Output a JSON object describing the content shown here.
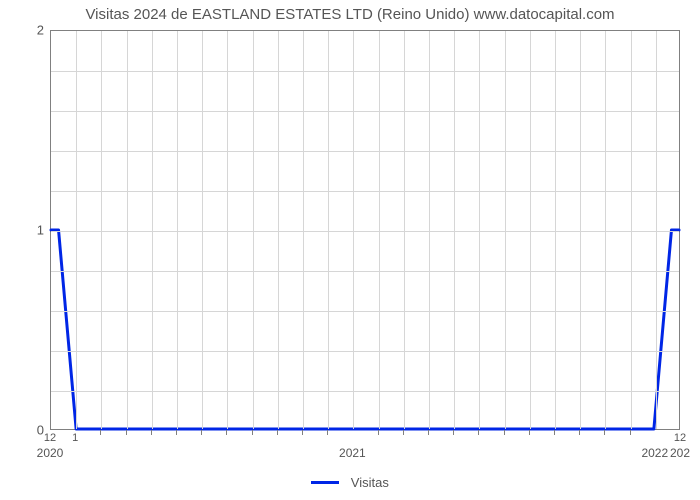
{
  "chart": {
    "type": "line",
    "title": "Visitas 2024 de EASTLAND ESTATES LTD (Reino Unido) www.datocapital.com",
    "title_fontsize": 15,
    "title_color": "#555555",
    "background_color": "#ffffff",
    "plot_border_color": "#808080",
    "grid_color": "#d6d6d6",
    "tick_color": "#555555",
    "series": {
      "label": "Visitas",
      "color": "#0026e6",
      "line_width": 3,
      "x": [
        0,
        0.3,
        1,
        24,
        24.7,
        25
      ],
      "y": [
        1,
        1,
        0,
        0,
        1,
        1
      ]
    },
    "x_axis": {
      "domain_min": 0,
      "domain_max": 25,
      "major_years": [
        {
          "pos": 0,
          "label": "2020"
        },
        {
          "pos": 12,
          "label": "2021"
        },
        {
          "pos": 24,
          "label": "2022"
        },
        {
          "pos": 25,
          "label": "202"
        }
      ],
      "month_labels": [
        {
          "pos": 0,
          "label": "12"
        },
        {
          "pos": 1,
          "label": "1"
        },
        {
          "pos": 25,
          "label": "12"
        }
      ],
      "minor_tick_positions": [
        2,
        3,
        4,
        5,
        6,
        7,
        8,
        9,
        10,
        11,
        13,
        14,
        15,
        16,
        17,
        18,
        19,
        20,
        21,
        22,
        23
      ]
    },
    "y_axis": {
      "min": 0,
      "max": 2,
      "ticks": [
        0,
        1,
        2
      ],
      "minor_gridlines": 10
    },
    "legend": {
      "position": "bottom-center"
    }
  }
}
